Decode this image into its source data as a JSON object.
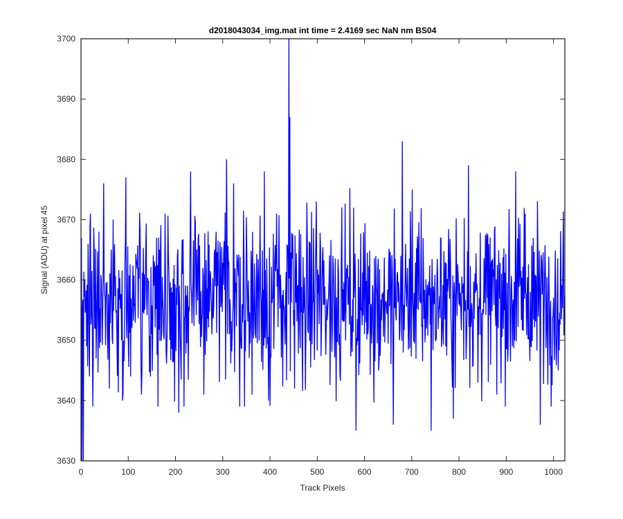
{
  "chart_data": {
    "type": "line",
    "title": "d2018043034_img.mat int time = 2.4169 sec  NaN nm BS04",
    "xlabel": "Track Pixels",
    "ylabel": "Signal (ADU) at pixel 45",
    "xlim": [
      0,
      1024
    ],
    "ylim": [
      3630,
      3700
    ],
    "xticks": [
      0,
      100,
      200,
      300,
      400,
      500,
      600,
      700,
      800,
      900,
      1000
    ],
    "yticks": [
      3630,
      3640,
      3650,
      3660,
      3670,
      3680,
      3690,
      3700
    ],
    "grid": false,
    "legend": "none",
    "colors": {
      "series": "#0000ff",
      "axes": "#262626"
    },
    "series": [
      {
        "peaks": [
          {
            "x": 1,
            "y": 3667
          },
          {
            "x": 2,
            "y": 3630
          },
          {
            "x": 3,
            "y": 3655
          },
          {
            "x": 5,
            "y": 3630
          },
          {
            "x": 8,
            "y": 3660
          },
          {
            "x": 12,
            "y": 3649
          },
          {
            "x": 15,
            "y": 3666
          },
          {
            "x": 18,
            "y": 3644
          },
          {
            "x": 20,
            "y": 3671
          },
          {
            "x": 24,
            "y": 3652
          },
          {
            "x": 28,
            "y": 3665
          },
          {
            "x": 32,
            "y": 3647
          },
          {
            "x": 38,
            "y": 3668
          },
          {
            "x": 43,
            "y": 3660
          },
          {
            "x": 48,
            "y": 3676
          },
          {
            "x": 60,
            "y": 3642
          },
          {
            "x": 68,
            "y": 3670
          },
          {
            "x": 88,
            "y": 3640
          },
          {
            "x": 95,
            "y": 3677
          },
          {
            "x": 105,
            "y": 3644
          },
          {
            "x": 128,
            "y": 3641
          },
          {
            "x": 160,
            "y": 3667
          },
          {
            "x": 178,
            "y": 3671
          },
          {
            "x": 207,
            "y": 3638
          },
          {
            "x": 218,
            "y": 3639
          },
          {
            "x": 232,
            "y": 3678
          },
          {
            "x": 260,
            "y": 3641
          },
          {
            "x": 286,
            "y": 3668
          },
          {
            "x": 308,
            "y": 3680
          },
          {
            "x": 323,
            "y": 3676
          },
          {
            "x": 362,
            "y": 3641
          },
          {
            "x": 388,
            "y": 3678
          },
          {
            "x": 397,
            "y": 3640
          },
          {
            "x": 440,
            "y": 3700
          },
          {
            "x": 442,
            "y": 3687
          },
          {
            "x": 452,
            "y": 3642
          },
          {
            "x": 474,
            "y": 3654
          },
          {
            "x": 498,
            "y": 3673
          },
          {
            "x": 560,
            "y": 3650
          },
          {
            "x": 582,
            "y": 3635
          },
          {
            "x": 630,
            "y": 3645
          },
          {
            "x": 661,
            "y": 3636
          },
          {
            "x": 680,
            "y": 3683
          },
          {
            "x": 701,
            "y": 3675
          },
          {
            "x": 741,
            "y": 3635
          },
          {
            "x": 788,
            "y": 3637
          },
          {
            "x": 820,
            "y": 3679
          },
          {
            "x": 840,
            "y": 3643
          },
          {
            "x": 880,
            "y": 3641
          },
          {
            "x": 920,
            "y": 3678
          },
          {
            "x": 940,
            "y": 3671
          },
          {
            "x": 972,
            "y": 3636
          },
          {
            "x": 1010,
            "y": 3645
          },
          {
            "x": 1020,
            "y": 3665
          }
        ],
        "baseline_mean": 3657,
        "noise_std": 7
      }
    ]
  }
}
